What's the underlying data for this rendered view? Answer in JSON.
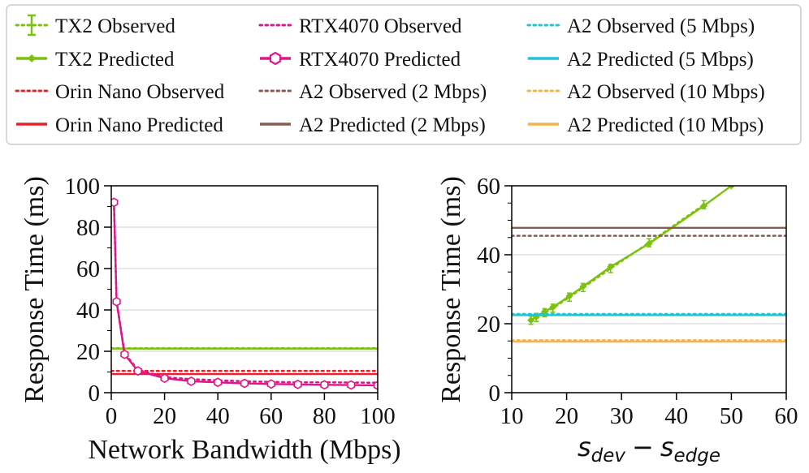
{
  "colors": {
    "tx2": "#7ac20e",
    "orin": "#e8202a",
    "rtx": "#e0158a",
    "a2_2": "#8b5a50",
    "a2_5": "#1fc4d6",
    "a2_10": "#f7b24a",
    "grid": "#d9d9d9"
  },
  "legend": {
    "items": [
      {
        "label": "TX2 Observed",
        "color_key": "tx2",
        "style": "dotted-errorbar"
      },
      {
        "label": "TX2 Predicted",
        "color_key": "tx2",
        "style": "solid-diamond"
      },
      {
        "label": "Orin Nano Observed",
        "color_key": "orin",
        "style": "dotted"
      },
      {
        "label": "Orin Nano Predicted",
        "color_key": "orin",
        "style": "solid"
      },
      {
        "label": "RTX4070 Observed",
        "color_key": "rtx",
        "style": "dotted"
      },
      {
        "label": "RTX4070 Predicted",
        "color_key": "rtx",
        "style": "solid-hexagon"
      },
      {
        "label": "A2 Observed (2 Mbps)",
        "color_key": "a2_2",
        "style": "dotted"
      },
      {
        "label": "A2 Predicted (2 Mbps)",
        "color_key": "a2_2",
        "style": "solid"
      },
      {
        "label": "A2 Observed (5 Mbps)",
        "color_key": "a2_5",
        "style": "dotted"
      },
      {
        "label": "A2 Predicted (5 Mbps)",
        "color_key": "a2_5",
        "style": "solid"
      },
      {
        "label": "A2 Observed (10 Mbps)",
        "color_key": "a2_10",
        "style": "dotted"
      },
      {
        "label": "A2 Predicted (10 Mbps)",
        "color_key": "a2_10",
        "style": "solid"
      }
    ]
  },
  "chart_data": [
    {
      "type": "line",
      "title": "",
      "xlabel": "Network Bandwidth (Mbps)",
      "ylabel": "Response Time (ms)",
      "xlim": [
        0,
        100
      ],
      "ylim": [
        0,
        100
      ],
      "xticks": [
        "0",
        "20",
        "40",
        "60",
        "80",
        "100"
      ],
      "yticks": [
        "0",
        "20",
        "40",
        "60",
        "80",
        "100"
      ],
      "grid": "horizontal",
      "series": [
        {
          "name": "TX2 Observed",
          "color_key": "tx2",
          "style": "dotted",
          "x": [
            0,
            100
          ],
          "y": [
            21.5,
            21.5
          ]
        },
        {
          "name": "TX2 Predicted",
          "color_key": "tx2",
          "style": "solid",
          "x": [
            0,
            100
          ],
          "y": [
            21.3,
            21.3
          ]
        },
        {
          "name": "Orin Nano Observed",
          "color_key": "orin",
          "style": "dotted",
          "x": [
            0,
            100
          ],
          "y": [
            10.5,
            10.5
          ]
        },
        {
          "name": "Orin Nano Predicted",
          "color_key": "orin",
          "style": "solid",
          "x": [
            0,
            100
          ],
          "y": [
            9.0,
            9.0
          ]
        },
        {
          "name": "RTX4070 Observed",
          "color_key": "rtx",
          "style": "dotted",
          "x": [
            1,
            2,
            5,
            10,
            20,
            30,
            40,
            50,
            60,
            70,
            80,
            90,
            100
          ],
          "y": [
            92,
            44,
            19,
            11,
            7.5,
            6.5,
            6,
            5.5,
            5.2,
            5,
            5,
            4.9,
            4.8
          ]
        },
        {
          "name": "RTX4070 Predicted",
          "color_key": "rtx",
          "style": "solid",
          "marker": "hexagon",
          "x": [
            1,
            2,
            5,
            10,
            20,
            30,
            40,
            50,
            60,
            70,
            80,
            90,
            100
          ],
          "y": [
            92,
            44,
            18.5,
            10.5,
            7,
            5.5,
            5,
            4.5,
            4.2,
            4,
            3.8,
            3.7,
            3.5
          ]
        }
      ]
    },
    {
      "type": "line",
      "title": "",
      "xlabel_main": "s",
      "xlabel_sub1": "dev",
      "xlabel_minus": "−",
      "xlabel_sub2": "edge",
      "ylabel": "Response Time (ms)",
      "xlim": [
        10,
        60
      ],
      "ylim": [
        0,
        60
      ],
      "xticks": [
        "10",
        "20",
        "30",
        "40",
        "50",
        "60"
      ],
      "yticks": [
        "0",
        "20",
        "40",
        "60"
      ],
      "grid": "horizontal",
      "series": [
        {
          "name": "TX2 Observed",
          "color_key": "tx2",
          "style": "dotted",
          "marker": "errorbar",
          "x": [
            13.5,
            14.5,
            16,
            17.5,
            20.5,
            23,
            28,
            35,
            45
          ],
          "y": [
            21,
            21.8,
            23.2,
            24.5,
            27.7,
            30.5,
            36,
            43.5,
            54.5
          ]
        },
        {
          "name": "TX2 Predicted",
          "color_key": "tx2",
          "style": "solid",
          "marker": "diamond",
          "x": [
            13.5,
            14.5,
            16,
            17.5,
            20.5,
            23,
            28,
            35,
            45,
            50
          ],
          "y": [
            21,
            22,
            23.5,
            24.8,
            28,
            30.8,
            36.5,
            43.2,
            54.2,
            60
          ]
        },
        {
          "name": "A2 Observed (2 Mbps)",
          "color_key": "a2_2",
          "style": "dotted",
          "x": [
            10,
            60
          ],
          "y": [
            45.5,
            45.5
          ]
        },
        {
          "name": "A2 Predicted (2 Mbps)",
          "color_key": "a2_2",
          "style": "solid",
          "x": [
            10,
            60
          ],
          "y": [
            47.8,
            47.8
          ]
        },
        {
          "name": "A2 Observed (5 Mbps)",
          "color_key": "a2_5",
          "style": "dotted",
          "x": [
            10,
            60
          ],
          "y": [
            22.8,
            22.8
          ]
        },
        {
          "name": "A2 Predicted (5 Mbps)",
          "color_key": "a2_5",
          "style": "solid",
          "x": [
            10,
            60
          ],
          "y": [
            22.5,
            22.5
          ]
        },
        {
          "name": "A2 Observed (10 Mbps)",
          "color_key": "a2_10",
          "style": "dotted",
          "x": [
            10,
            60
          ],
          "y": [
            15.2,
            15.2
          ]
        },
        {
          "name": "A2 Predicted (10 Mbps)",
          "color_key": "a2_10",
          "style": "solid",
          "x": [
            10,
            60
          ],
          "y": [
            14.8,
            14.8
          ]
        }
      ]
    }
  ]
}
